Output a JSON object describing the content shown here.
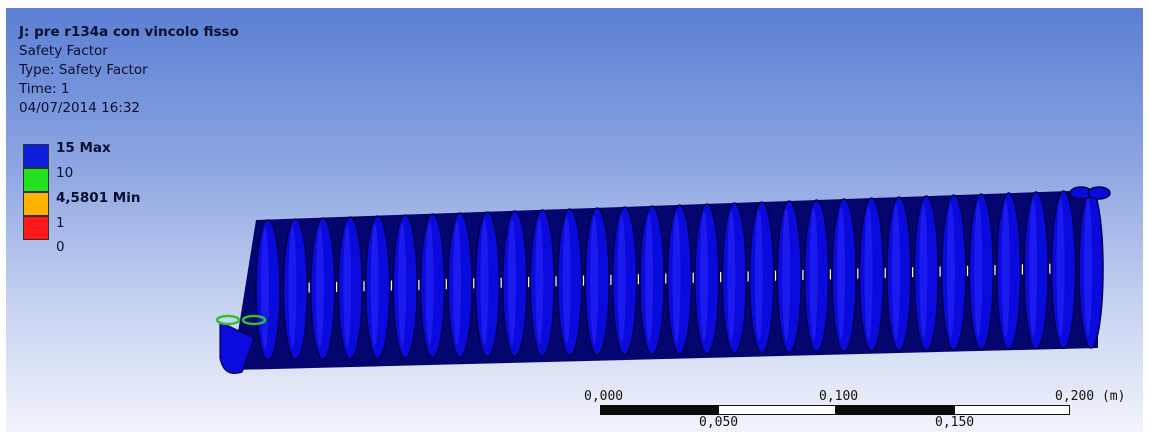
{
  "info": {
    "title": "J: pre r134a con vincolo fisso",
    "result": "Safety Factor",
    "type": "Type: Safety Factor",
    "time": "Time: 1",
    "date": "04/07/2014 16:32"
  },
  "legend": {
    "entries": [
      {
        "label": "15 Max",
        "color": "#0a1edc"
      },
      {
        "label": "10",
        "color": "#22e11f"
      },
      {
        "label": "4,5801 Min",
        "color": "#ffb300"
      },
      {
        "label": "1",
        "color": "#ff1a1a"
      },
      {
        "label": "0",
        "color": ""
      }
    ]
  },
  "scale": {
    "top_ticks": [
      "0,000",
      "0,100",
      "0,200 (m)"
    ],
    "bottom_ticks": [
      "0,050",
      "0,150"
    ]
  },
  "model": {
    "coil_color": "#0a0adc",
    "end_ring_color": "#2ec22e",
    "turns": 31
  }
}
